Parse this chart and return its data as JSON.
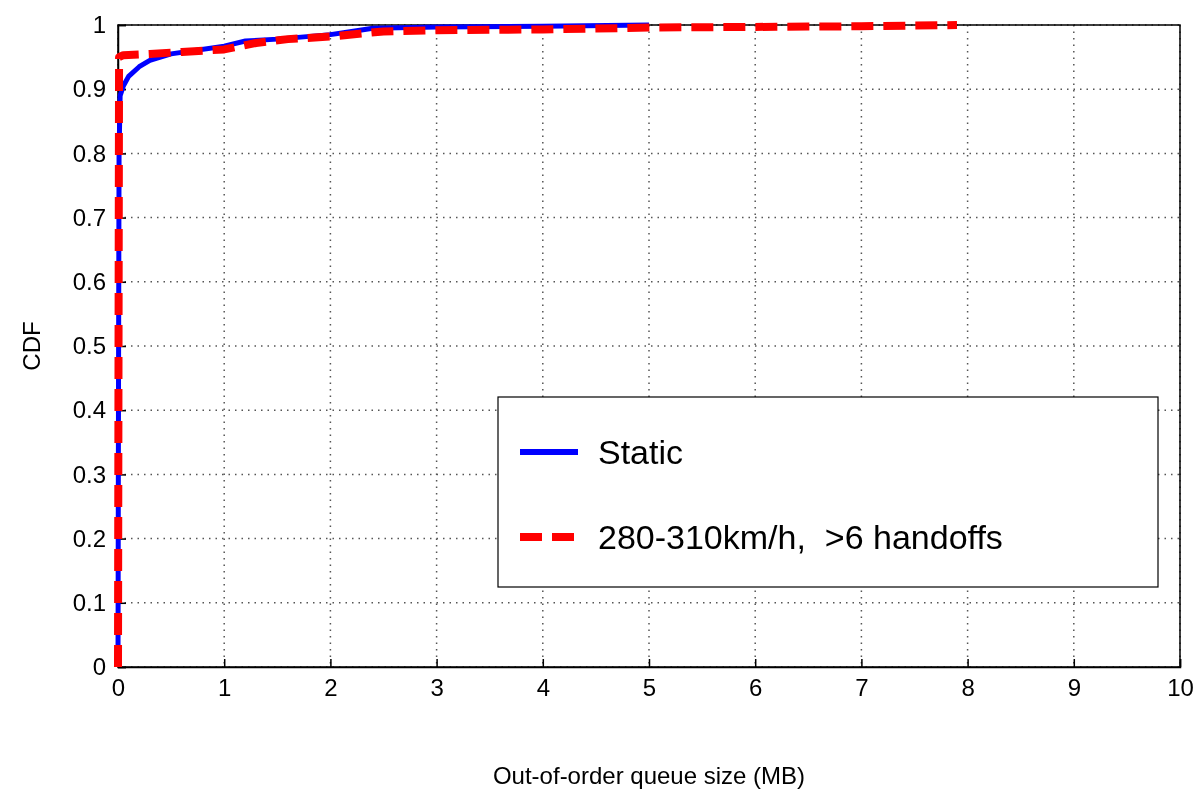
{
  "chart_data": {
    "type": "line",
    "xlabel": "Out-of-order queue size (MB)",
    "ylabel": "CDF",
    "xlim": [
      0,
      10
    ],
    "ylim": [
      0,
      1
    ],
    "xticks": [
      0,
      1,
      2,
      3,
      4,
      5,
      6,
      7,
      8,
      9,
      10
    ],
    "yticks": [
      0,
      0.1,
      0.2,
      0.3,
      0.4,
      0.5,
      0.6,
      0.7,
      0.8,
      0.9,
      1
    ],
    "grid": true,
    "legend": "bottom right",
    "series": [
      {
        "name": "Static",
        "color": "#0000ff",
        "line_style": "solid",
        "x": [
          0,
          0.005,
          0.01,
          0.02,
          0.05,
          0.1,
          0.2,
          0.3,
          0.5,
          1,
          1.2,
          1.5,
          2,
          2.2,
          2.4,
          3,
          4,
          5
        ],
        "values": [
          0,
          0.45,
          0.8,
          0.89,
          0.905,
          0.92,
          0.935,
          0.945,
          0.955,
          0.967,
          0.975,
          0.978,
          0.985,
          0.99,
          0.995,
          0.997,
          0.998,
          1
        ]
      },
      {
        "name": "280-310km/h,  >6 handoffs",
        "color": "#ff0000",
        "line_style": "dashed",
        "x": [
          0,
          0.005,
          0.01,
          0.05,
          0.3,
          0.6,
          1,
          1.3,
          1.6,
          2,
          2.5,
          3,
          4,
          5,
          6,
          7,
          7.9
        ],
        "values": [
          0,
          0.5,
          0.95,
          0.953,
          0.955,
          0.958,
          0.962,
          0.972,
          0.978,
          0.982,
          0.99,
          0.992,
          0.993,
          0.996,
          0.997,
          0.998,
          1
        ]
      }
    ]
  }
}
